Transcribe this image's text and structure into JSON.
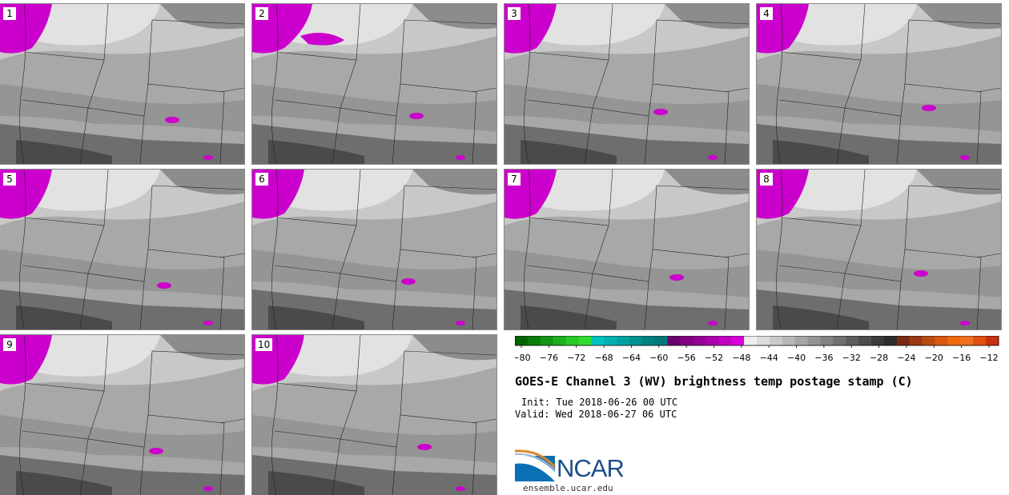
{
  "panels": [
    {
      "label": "1"
    },
    {
      "label": "2"
    },
    {
      "label": "3"
    },
    {
      "label": "4"
    },
    {
      "label": "5"
    },
    {
      "label": "6"
    },
    {
      "label": "7"
    },
    {
      "label": "8"
    },
    {
      "label": "9"
    },
    {
      "label": "10"
    }
  ],
  "colorbar": {
    "ticks": [
      "−80",
      "−76",
      "−72",
      "−68",
      "−64",
      "−60",
      "−56",
      "−52",
      "−48",
      "−44",
      "−40",
      "−36",
      "−32",
      "−28",
      "−24",
      "−20",
      "−16",
      "−12"
    ],
    "colors": [
      "#006400",
      "#0a7d0a",
      "#149614",
      "#1eaf1e",
      "#28c828",
      "#30dc30",
      "#00c0c0",
      "#00b0b0",
      "#00a0a0",
      "#009090",
      "#008080",
      "#007878",
      "#6a006a",
      "#800080",
      "#960096",
      "#ac00ac",
      "#c200c2",
      "#d800d8",
      "#eeeeee",
      "#dcdcdc",
      "#cacaca",
      "#b8b8b8",
      "#a6a6a6",
      "#949494",
      "#828282",
      "#707070",
      "#5e5e5e",
      "#4c4c4c",
      "#3a3a3a",
      "#2c2c2c",
      "#7a2a10",
      "#9a3a12",
      "#ba4a14",
      "#d85a10",
      "#f06a0c",
      "#f07020",
      "#e05010",
      "#c83010"
    ]
  },
  "title": "GOES-E Channel 3 (WV) brightness temp postage stamp (C)",
  "init": "Init: Tue 2018-06-26 00 UTC",
  "valid": "Valid: Wed 2018-06-27 06 UTC",
  "logo": {
    "text": "NCAR"
  },
  "site": "ensemble.ucar.edu",
  "colors": {
    "cold_magenta": "#cc00cc",
    "map_gray": "#a9a9a9"
  }
}
